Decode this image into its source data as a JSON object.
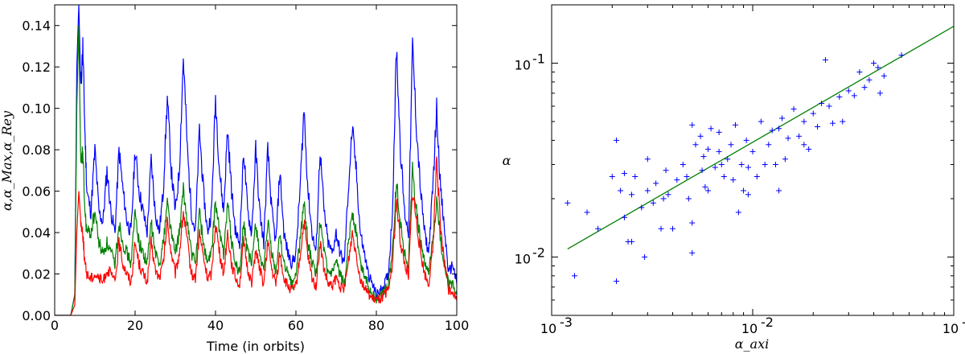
{
  "chart_data": [
    {
      "type": "line",
      "xlabel": "Time (in orbits)",
      "ylabel": "α,α_Max,α_Rey",
      "xlim": [
        0,
        100
      ],
      "ylim": [
        0,
        0.15
      ],
      "xticks": [
        "0",
        "20",
        "40",
        "60",
        "80",
        "100"
      ],
      "yticks": [
        "0.00",
        "0.02",
        "0.04",
        "0.06",
        "0.08",
        "0.10",
        "0.12",
        "0.14"
      ],
      "series": [
        {
          "color": "#0000ff",
          "x": [
            0,
            4,
            5,
            5.5,
            6,
            6.5,
            7,
            7.5,
            8,
            9,
            10,
            11,
            12,
            13,
            14,
            15,
            16,
            17,
            18,
            19,
            20,
            21,
            22,
            23,
            24,
            25,
            26,
            27,
            28,
            29,
            30,
            31,
            32,
            33,
            34,
            35,
            36,
            37,
            38,
            39,
            40,
            41,
            42,
            43,
            44,
            45,
            46,
            47,
            48,
            49,
            50,
            51,
            52,
            53,
            54,
            55,
            56,
            57,
            58,
            59,
            60,
            61,
            62,
            63,
            64,
            65,
            66,
            67,
            68,
            69,
            70,
            71,
            72,
            73,
            74,
            75,
            76,
            77,
            78,
            79,
            80,
            81,
            82,
            83,
            84,
            85,
            86,
            87,
            88,
            89,
            90,
            91,
            92,
            93,
            94,
            95,
            96,
            97,
            98,
            99,
            100
          ],
          "y": [
            0,
            0,
            0.01,
            0.12,
            0.15,
            0.11,
            0.13,
            0.09,
            0.06,
            0.05,
            0.08,
            0.05,
            0.045,
            0.07,
            0.05,
            0.04,
            0.08,
            0.06,
            0.045,
            0.04,
            0.08,
            0.06,
            0.05,
            0.04,
            0.075,
            0.05,
            0.04,
            0.06,
            0.105,
            0.07,
            0.05,
            0.07,
            0.125,
            0.08,
            0.05,
            0.04,
            0.09,
            0.06,
            0.04,
            0.05,
            0.105,
            0.07,
            0.05,
            0.09,
            0.06,
            0.04,
            0.035,
            0.08,
            0.05,
            0.04,
            0.08,
            0.05,
            0.035,
            0.08,
            0.05,
            0.035,
            0.07,
            0.04,
            0.03,
            0.025,
            0.03,
            0.06,
            0.1,
            0.06,
            0.04,
            0.03,
            0.08,
            0.05,
            0.035,
            0.03,
            0.04,
            0.03,
            0.025,
            0.06,
            0.09,
            0.07,
            0.04,
            0.03,
            0.02,
            0.015,
            0.01,
            0.012,
            0.015,
            0.02,
            0.05,
            0.13,
            0.08,
            0.05,
            0.04,
            0.13,
            0.09,
            0.06,
            0.04,
            0.03,
            0.06,
            0.1,
            0.06,
            0.04,
            0.02,
            0.025,
            0.015
          ]
        },
        {
          "color": "#008000",
          "x": [
            0,
            4,
            5,
            5.5,
            6,
            6.5,
            7,
            7.5,
            8,
            9,
            10,
            11,
            12,
            13,
            14,
            15,
            16,
            17,
            18,
            19,
            20,
            21,
            22,
            23,
            24,
            25,
            26,
            27,
            28,
            29,
            30,
            31,
            32,
            33,
            34,
            35,
            36,
            37,
            38,
            39,
            40,
            41,
            42,
            43,
            44,
            45,
            46,
            47,
            48,
            49,
            50,
            51,
            52,
            53,
            54,
            55,
            56,
            57,
            58,
            59,
            60,
            61,
            62,
            63,
            64,
            65,
            66,
            67,
            68,
            69,
            70,
            71,
            72,
            73,
            74,
            75,
            76,
            77,
            78,
            79,
            80,
            81,
            82,
            83,
            84,
            85,
            86,
            87,
            88,
            89,
            90,
            91,
            92,
            93,
            94,
            95,
            96,
            97,
            98,
            99,
            100
          ],
          "y": [
            0,
            0,
            0.01,
            0.1,
            0.14,
            0.07,
            0.08,
            0.05,
            0.04,
            0.04,
            0.05,
            0.035,
            0.03,
            0.035,
            0.03,
            0.025,
            0.045,
            0.035,
            0.03,
            0.025,
            0.05,
            0.035,
            0.03,
            0.025,
            0.045,
            0.03,
            0.025,
            0.035,
            0.055,
            0.04,
            0.03,
            0.04,
            0.06,
            0.045,
            0.03,
            0.025,
            0.05,
            0.035,
            0.025,
            0.03,
            0.055,
            0.04,
            0.03,
            0.055,
            0.035,
            0.025,
            0.02,
            0.045,
            0.03,
            0.025,
            0.045,
            0.03,
            0.02,
            0.045,
            0.03,
            0.02,
            0.04,
            0.025,
            0.02,
            0.015,
            0.02,
            0.035,
            0.055,
            0.035,
            0.025,
            0.02,
            0.045,
            0.03,
            0.02,
            0.02,
            0.025,
            0.02,
            0.015,
            0.035,
            0.05,
            0.04,
            0.025,
            0.02,
            0.015,
            0.01,
            0.008,
            0.01,
            0.012,
            0.015,
            0.03,
            0.065,
            0.045,
            0.03,
            0.025,
            0.07,
            0.05,
            0.035,
            0.025,
            0.02,
            0.035,
            0.055,
            0.035,
            0.025,
            0.015,
            0.015,
            0.01
          ]
        },
        {
          "color": "#ff0000",
          "x": [
            0,
            4,
            5,
            5.5,
            6,
            6.5,
            7,
            7.5,
            8,
            9,
            10,
            11,
            12,
            13,
            14,
            15,
            16,
            17,
            18,
            19,
            20,
            21,
            22,
            23,
            24,
            25,
            26,
            27,
            28,
            29,
            30,
            31,
            32,
            33,
            34,
            35,
            36,
            37,
            38,
            39,
            40,
            41,
            42,
            43,
            44,
            45,
            46,
            47,
            48,
            49,
            50,
            51,
            52,
            53,
            54,
            55,
            56,
            57,
            58,
            59,
            60,
            61,
            62,
            63,
            64,
            65,
            66,
            67,
            68,
            69,
            70,
            71,
            72,
            73,
            74,
            75,
            76,
            77,
            78,
            79,
            80,
            81,
            82,
            83,
            84,
            85,
            86,
            87,
            88,
            89,
            90,
            91,
            92,
            93,
            94,
            95,
            96,
            97,
            98,
            99,
            100
          ],
          "y": [
            0,
            0,
            0.005,
            0.04,
            0.06,
            0.045,
            0.04,
            0.025,
            0.02,
            0.018,
            0.02,
            0.018,
            0.016,
            0.022,
            0.02,
            0.016,
            0.035,
            0.025,
            0.02,
            0.016,
            0.035,
            0.025,
            0.02,
            0.016,
            0.035,
            0.022,
            0.018,
            0.025,
            0.045,
            0.03,
            0.02,
            0.03,
            0.05,
            0.035,
            0.02,
            0.018,
            0.04,
            0.028,
            0.018,
            0.02,
            0.045,
            0.03,
            0.02,
            0.04,
            0.025,
            0.018,
            0.015,
            0.035,
            0.022,
            0.016,
            0.032,
            0.022,
            0.015,
            0.035,
            0.022,
            0.015,
            0.03,
            0.018,
            0.014,
            0.012,
            0.014,
            0.028,
            0.045,
            0.028,
            0.018,
            0.014,
            0.035,
            0.022,
            0.015,
            0.014,
            0.018,
            0.014,
            0.012,
            0.025,
            0.04,
            0.03,
            0.018,
            0.014,
            0.01,
            0.008,
            0.007,
            0.008,
            0.01,
            0.012,
            0.025,
            0.055,
            0.035,
            0.025,
            0.02,
            0.06,
            0.045,
            0.03,
            0.02,
            0.015,
            0.03,
            0.075,
            0.04,
            0.025,
            0.012,
            0.012,
            0.007
          ]
        }
      ]
    },
    {
      "type": "scatter",
      "xlabel": "α_axi",
      "ylabel": "α",
      "x_scale": "log",
      "y_scale": "log",
      "xlim": [
        0.001,
        0.1
      ],
      "ylim": [
        0.005,
        0.2
      ],
      "xticks": [
        {
          "base": "10",
          "exp": "-3"
        },
        {
          "base": "10",
          "exp": "-2"
        },
        {
          "base": "10",
          "exp": "-1"
        }
      ],
      "yticks": [
        {
          "base": "10",
          "exp": "-2",
          "value": 0.01
        },
        {
          "base": "10",
          "exp": "-1",
          "value": 0.1
        }
      ],
      "marker_color": "#0000ff",
      "fit_line_color": "#008000",
      "fit_line": {
        "x": [
          0.0012,
          0.1
        ],
        "y": [
          0.011,
          0.155
        ]
      },
      "points": [
        [
          0.0012,
          0.019
        ],
        [
          0.0013,
          0.008
        ],
        [
          0.0015,
          0.017
        ],
        [
          0.0017,
          0.014
        ],
        [
          0.002,
          0.026
        ],
        [
          0.0021,
          0.0075
        ],
        [
          0.0021,
          0.04
        ],
        [
          0.0022,
          0.022
        ],
        [
          0.0023,
          0.016
        ],
        [
          0.0023,
          0.027
        ],
        [
          0.0024,
          0.012
        ],
        [
          0.0025,
          0.012
        ],
        [
          0.0025,
          0.021
        ],
        [
          0.0026,
          0.026
        ],
        [
          0.0028,
          0.018
        ],
        [
          0.0029,
          0.01
        ],
        [
          0.003,
          0.032
        ],
        [
          0.003,
          0.022
        ],
        [
          0.0032,
          0.019
        ],
        [
          0.0033,
          0.024
        ],
        [
          0.0035,
          0.014
        ],
        [
          0.0036,
          0.02
        ],
        [
          0.0037,
          0.028
        ],
        [
          0.0038,
          0.021
        ],
        [
          0.004,
          0.014
        ],
        [
          0.0042,
          0.025
        ],
        [
          0.0045,
          0.03
        ],
        [
          0.0047,
          0.026
        ],
        [
          0.005,
          0.048
        ],
        [
          0.005,
          0.0105
        ],
        [
          0.005,
          0.015
        ],
        [
          0.0052,
          0.038
        ],
        [
          0.0055,
          0.042
        ],
        [
          0.0056,
          0.028
        ],
        [
          0.0057,
          0.033
        ],
        [
          0.006,
          0.022
        ],
        [
          0.006,
          0.036
        ],
        [
          0.0062,
          0.046
        ],
        [
          0.0065,
          0.029
        ],
        [
          0.0068,
          0.044
        ],
        [
          0.007,
          0.03
        ],
        [
          0.0072,
          0.026
        ],
        [
          0.0075,
          0.032
        ],
        [
          0.0078,
          0.038
        ],
        [
          0.008,
          0.025
        ],
        [
          0.0082,
          0.048
        ],
        [
          0.0085,
          0.017
        ],
        [
          0.0088,
          0.03
        ],
        [
          0.009,
          0.022
        ],
        [
          0.0093,
          0.04
        ],
        [
          0.0095,
          0.029
        ],
        [
          0.01,
          0.035
        ],
        [
          0.0105,
          0.026
        ],
        [
          0.011,
          0.05
        ],
        [
          0.0115,
          0.03
        ],
        [
          0.012,
          0.038
        ],
        [
          0.0125,
          0.045
        ],
        [
          0.013,
          0.03
        ],
        [
          0.0135,
          0.046
        ],
        [
          0.014,
          0.052
        ],
        [
          0.0145,
          0.032
        ],
        [
          0.015,
          0.041
        ],
        [
          0.016,
          0.058
        ],
        [
          0.017,
          0.042
        ],
        [
          0.018,
          0.05
        ],
        [
          0.019,
          0.036
        ],
        [
          0.02,
          0.055
        ],
        [
          0.021,
          0.047
        ],
        [
          0.022,
          0.062
        ],
        [
          0.023,
          0.104
        ],
        [
          0.024,
          0.06
        ],
        [
          0.025,
          0.049
        ],
        [
          0.027,
          0.067
        ],
        [
          0.028,
          0.05
        ],
        [
          0.03,
          0.072
        ],
        [
          0.032,
          0.068
        ],
        [
          0.034,
          0.09
        ],
        [
          0.036,
          0.075
        ],
        [
          0.038,
          0.082
        ],
        [
          0.04,
          0.1
        ],
        [
          0.042,
          0.095
        ],
        [
          0.043,
          0.07
        ],
        [
          0.045,
          0.086
        ],
        [
          0.055,
          0.11
        ],
        [
          0.018,
          0.038
        ],
        [
          0.0135,
          0.022
        ],
        [
          0.0095,
          0.021
        ],
        [
          0.0068,
          0.035
        ],
        [
          0.0058,
          0.023
        ],
        [
          0.0048,
          0.02
        ]
      ]
    }
  ]
}
